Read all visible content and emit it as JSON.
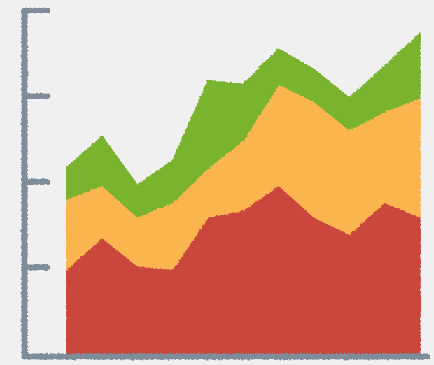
{
  "chart_data": {
    "type": "stacked-area",
    "x": [
      0,
      1,
      2,
      3,
      4,
      5,
      6,
      7,
      8,
      9,
      10
    ],
    "xlim": [
      -1.3,
      10.2
    ],
    "ylim": [
      0,
      4
    ],
    "yticks": [
      1,
      2,
      3,
      4
    ],
    "axis_color": "#7f8c99",
    "series": [
      {
        "color": "#c9463d",
        "values": [
          0.98,
          1.35,
          1.02,
          0.98,
          1.59,
          1.67,
          1.96,
          1.59,
          1.39,
          1.76,
          1.59
        ]
      },
      {
        "color": "#fbb550",
        "values": [
          0.82,
          0.61,
          0.57,
          0.78,
          0.57,
          0.82,
          1.18,
          1.35,
          1.22,
          1.06,
          1.39
        ]
      },
      {
        "color": "#7ab32e",
        "values": [
          0.37,
          0.57,
          0.37,
          0.49,
          1.02,
          0.65,
          0.41,
          0.37,
          0.37,
          0.53,
          0.75
        ]
      }
    ]
  }
}
